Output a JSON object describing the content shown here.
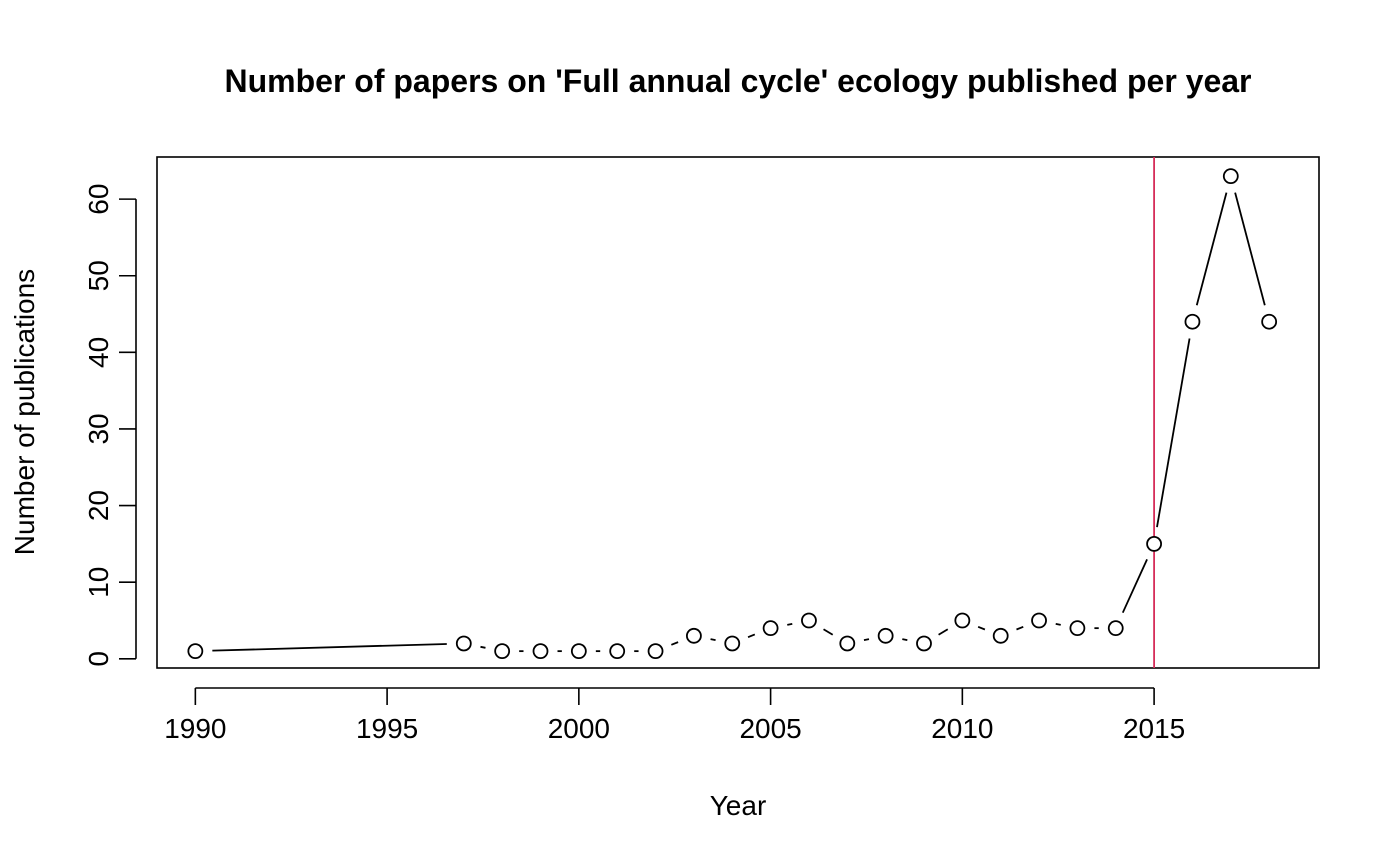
{
  "chart_data": {
    "type": "line",
    "title": "Number of papers on 'Full annual cycle' ecology published per year",
    "xlabel": "Year",
    "ylabel": "Number of publications",
    "xlim": [
      1989,
      2019.3
    ],
    "ylim": [
      -1.2,
      65.5
    ],
    "x_ticks": [
      1990,
      1995,
      2000,
      2005,
      2010,
      2015
    ],
    "y_ticks": [
      0,
      10,
      20,
      30,
      40,
      50,
      60
    ],
    "x": [
      1990,
      1997,
      1998,
      1999,
      2000,
      2001,
      2002,
      2003,
      2004,
      2005,
      2006,
      2007,
      2008,
      2009,
      2010,
      2011,
      2012,
      2013,
      2014,
      2015,
      2016,
      2017,
      2018
    ],
    "y": [
      1,
      2,
      1,
      1,
      1,
      1,
      1,
      3,
      2,
      4,
      5,
      2,
      3,
      2,
      5,
      3,
      5,
      4,
      4,
      15,
      44,
      63,
      44
    ],
    "vline": {
      "x": 2015,
      "color": "#d62d5a"
    },
    "line_color": "#000000",
    "marker": "open-circle",
    "grid": false,
    "legend": "none"
  }
}
